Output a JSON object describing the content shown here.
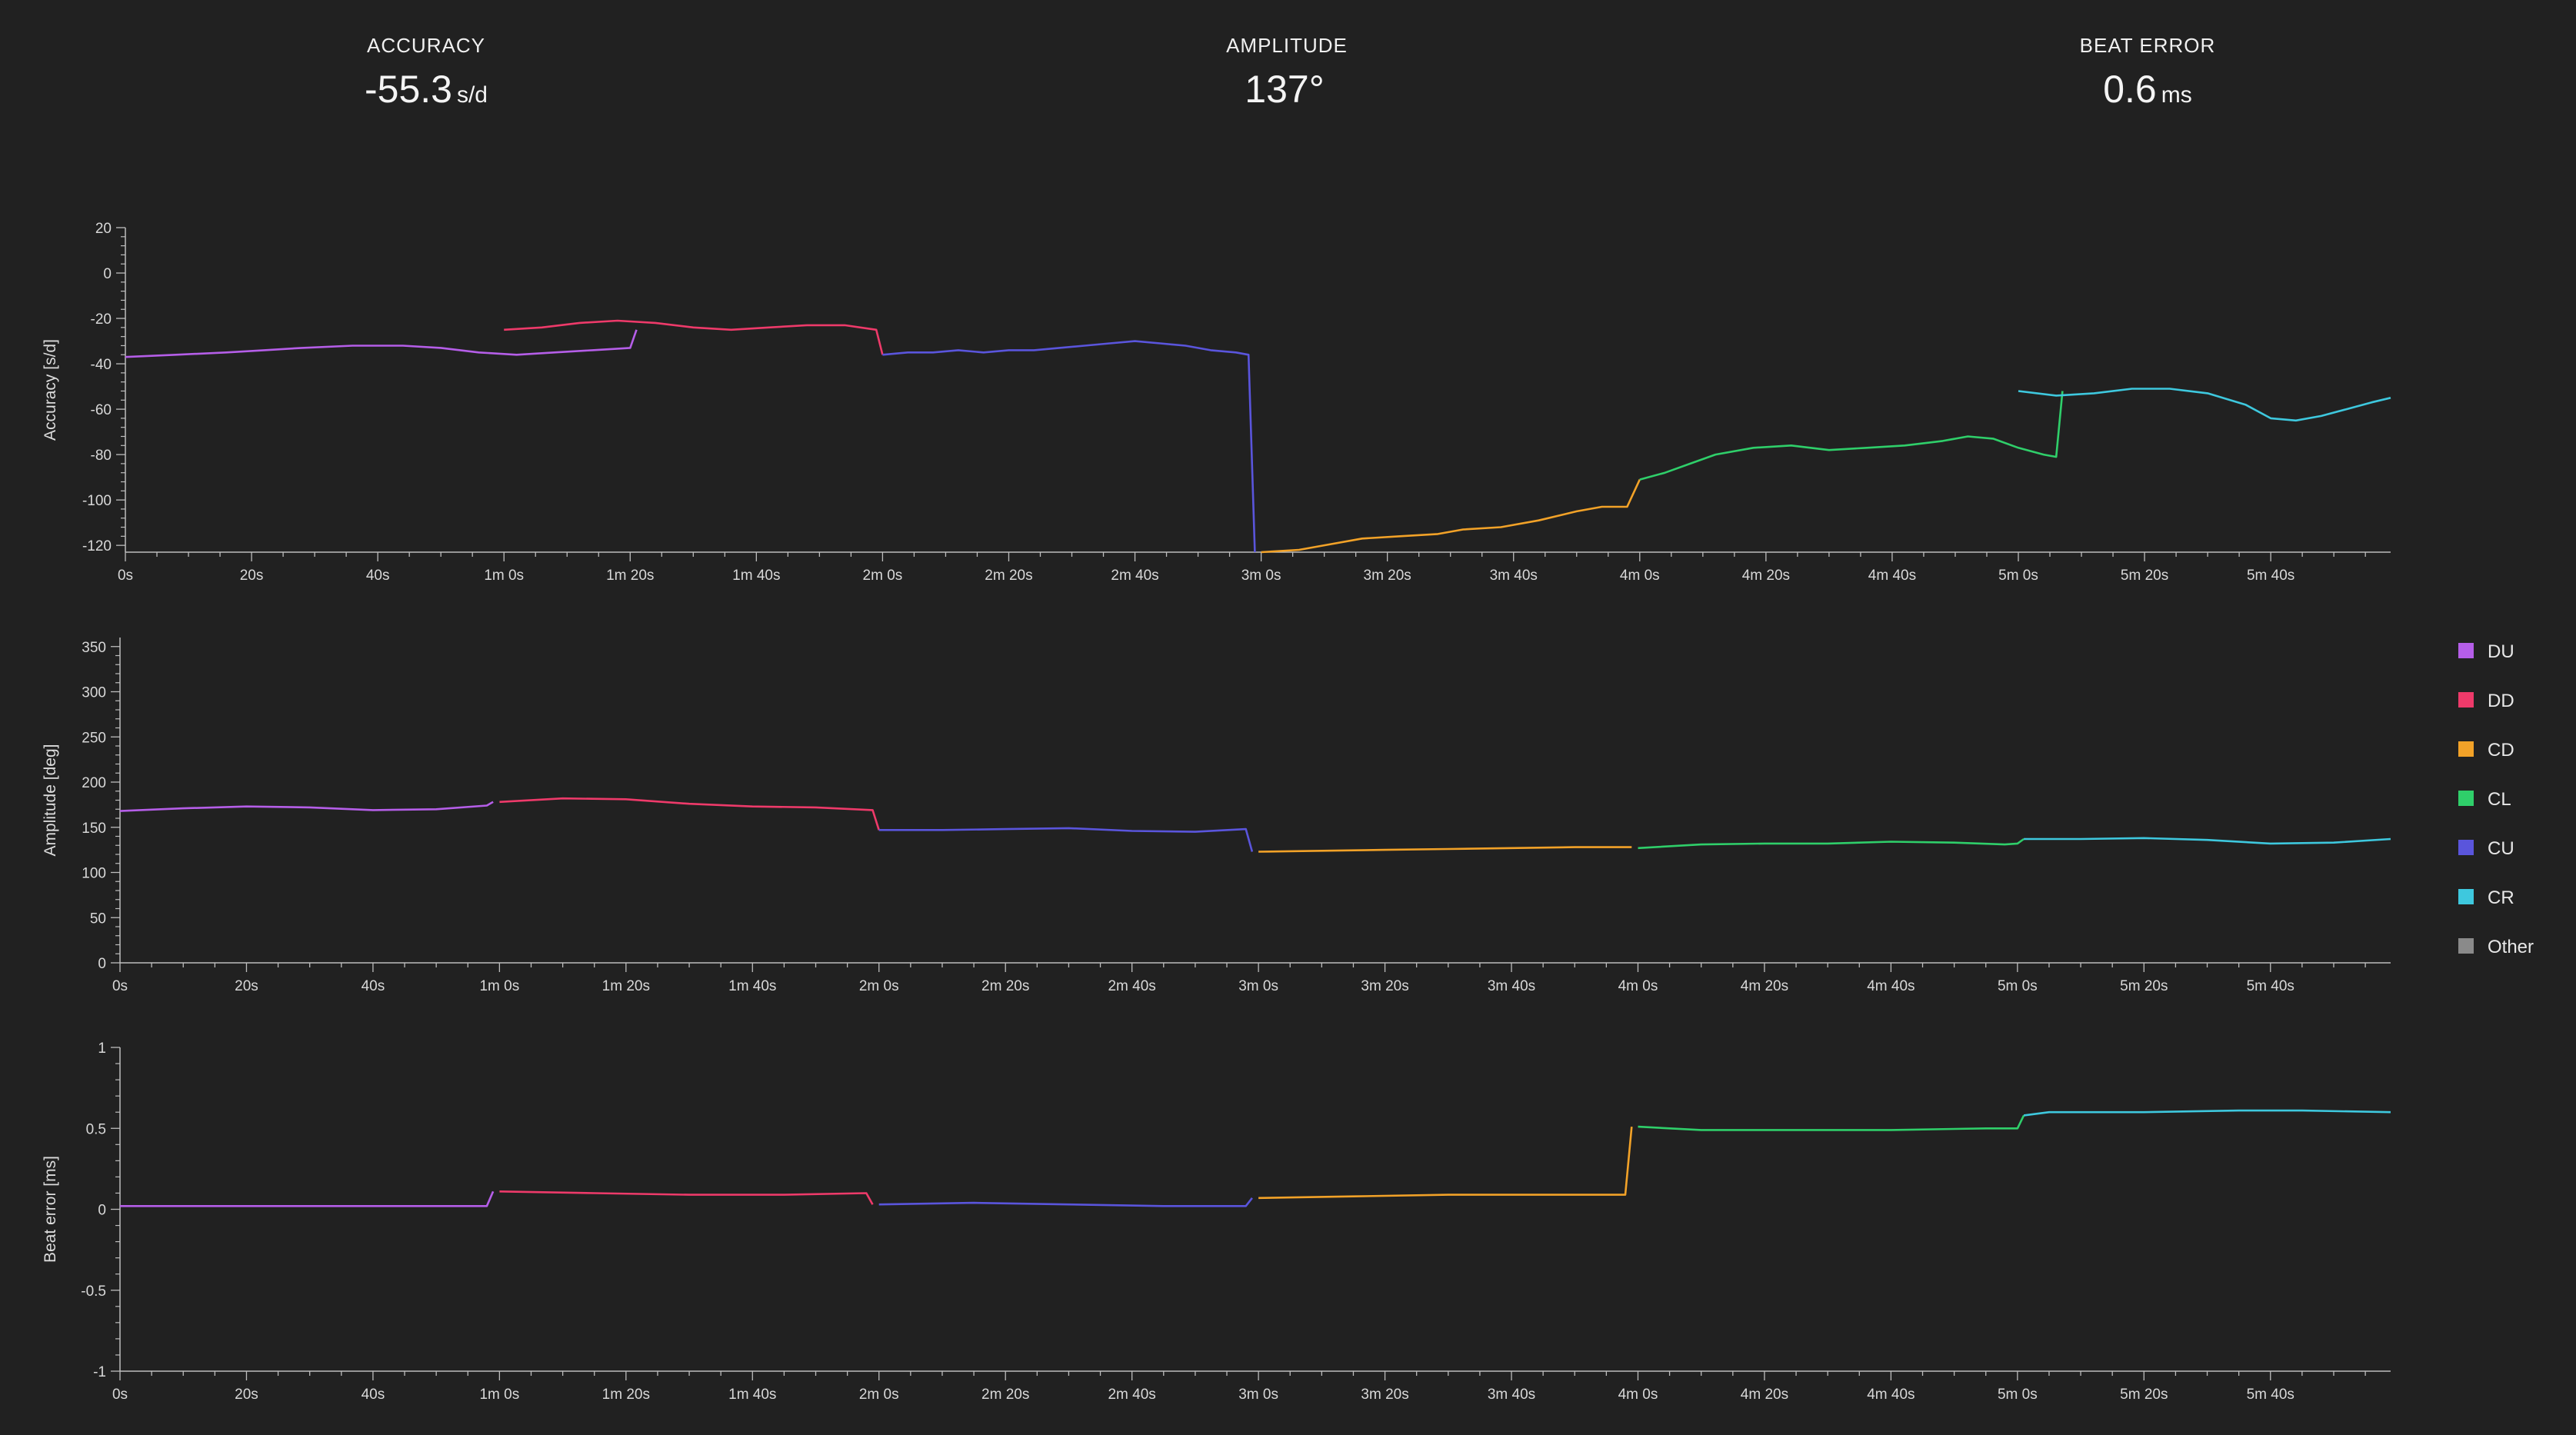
{
  "stats": [
    {
      "label": "ACCURACY",
      "value": "-55.3",
      "unit": "s/d"
    },
    {
      "label": "AMPLITUDE",
      "value": "137°",
      "unit": ""
    },
    {
      "label": "BEAT ERROR",
      "value": "0.6",
      "unit": "ms"
    }
  ],
  "legend": [
    {
      "name": "DU",
      "color": "#b55ee8"
    },
    {
      "name": "DD",
      "color": "#ee3a6a"
    },
    {
      "name": "CD",
      "color": "#f2a228"
    },
    {
      "name": "CL",
      "color": "#2fcf6a"
    },
    {
      "name": "CU",
      "color": "#5a55dc"
    },
    {
      "name": "CR",
      "color": "#3ec8de"
    },
    {
      "name": "Other",
      "color": "#8a8a8a"
    }
  ],
  "x_tick_labels": [
    "0s",
    "20s",
    "40s",
    "1m 0s",
    "1m 20s",
    "1m 40s",
    "2m 0s",
    "2m 20s",
    "2m 40s",
    "3m 0s",
    "3m 20s",
    "3m 40s",
    "4m 0s",
    "4m 20s",
    "4m 40s",
    "5m 0s",
    "5m 20s",
    "5m 40s"
  ],
  "chart_data": [
    {
      "type": "line",
      "ylabel": "Accuracy [s/d]",
      "xlim": [
        0,
        359
      ],
      "ylim": [
        -123,
        20
      ],
      "yticks": [
        20,
        0,
        -20,
        -40,
        -60,
        -80,
        -100,
        -120
      ],
      "series": [
        {
          "name": "DU",
          "points": [
            [
              0,
              -37
            ],
            [
              8,
              -36
            ],
            [
              16,
              -35
            ],
            [
              22,
              -34
            ],
            [
              28,
              -33
            ],
            [
              36,
              -32
            ],
            [
              44,
              -32
            ],
            [
              50,
              -33
            ],
            [
              56,
              -35
            ],
            [
              62,
              -36
            ],
            [
              68,
              -35
            ],
            [
              74,
              -34
            ],
            [
              80,
              -33
            ],
            [
              81,
              -25
            ]
          ]
        },
        {
          "name": "DD",
          "points": [
            [
              60,
              -25
            ],
            [
              66,
              -24
            ],
            [
              72,
              -22
            ],
            [
              78,
              -21
            ],
            [
              84,
              -22
            ],
            [
              90,
              -24
            ],
            [
              96,
              -25
            ],
            [
              102,
              -24
            ],
            [
              108,
              -23
            ],
            [
              114,
              -23
            ],
            [
              119,
              -25
            ],
            [
              120,
              -36
            ]
          ]
        },
        {
          "name": "CU",
          "points": [
            [
              120,
              -36
            ],
            [
              124,
              -35
            ],
            [
              128,
              -35
            ],
            [
              132,
              -34
            ],
            [
              136,
              -35
            ],
            [
              140,
              -34
            ],
            [
              144,
              -34
            ],
            [
              148,
              -33
            ],
            [
              152,
              -32
            ],
            [
              156,
              -31
            ],
            [
              160,
              -30
            ],
            [
              164,
              -31
            ],
            [
              168,
              -32
            ],
            [
              172,
              -34
            ],
            [
              176,
              -35
            ],
            [
              178,
              -36
            ],
            [
              179,
              -123
            ]
          ]
        },
        {
          "name": "CD",
          "points": [
            [
              180,
              -123
            ],
            [
              186,
              -122
            ],
            [
              190,
              -120
            ],
            [
              196,
              -117
            ],
            [
              202,
              -116
            ],
            [
              208,
              -115
            ],
            [
              212,
              -113
            ],
            [
              218,
              -112
            ],
            [
              224,
              -109
            ],
            [
              230,
              -105
            ],
            [
              234,
              -103
            ],
            [
              238,
              -103
            ],
            [
              240,
              -91
            ]
          ]
        },
        {
          "name": "CL",
          "points": [
            [
              240,
              -91
            ],
            [
              244,
              -88
            ],
            [
              248,
              -84
            ],
            [
              252,
              -80
            ],
            [
              258,
              -77
            ],
            [
              264,
              -76
            ],
            [
              270,
              -78
            ],
            [
              276,
              -77
            ],
            [
              282,
              -76
            ],
            [
              288,
              -74
            ],
            [
              292,
              -72
            ],
            [
              296,
              -73
            ],
            [
              300,
              -77
            ],
            [
              304,
              -80
            ],
            [
              306,
              -81
            ],
            [
              307,
              -52
            ]
          ]
        },
        {
          "name": "CR",
          "points": [
            [
              300,
              -52
            ],
            [
              306,
              -54
            ],
            [
              312,
              -53
            ],
            [
              318,
              -51
            ],
            [
              324,
              -51
            ],
            [
              330,
              -53
            ],
            [
              336,
              -58
            ],
            [
              340,
              -64
            ],
            [
              344,
              -65
            ],
            [
              348,
              -63
            ],
            [
              352,
              -60
            ],
            [
              356,
              -57
            ],
            [
              359,
              -55
            ]
          ]
        }
      ]
    },
    {
      "type": "line",
      "ylabel": "Amplitude [deg]",
      "xlim": [
        0,
        359
      ],
      "ylim": [
        0,
        360
      ],
      "yticks": [
        350,
        300,
        250,
        200,
        150,
        100,
        50,
        0
      ],
      "series": [
        {
          "name": "DU",
          "points": [
            [
              0,
              168
            ],
            [
              10,
              171
            ],
            [
              20,
              173
            ],
            [
              30,
              172
            ],
            [
              40,
              169
            ],
            [
              50,
              170
            ],
            [
              58,
              174
            ],
            [
              59,
              178
            ]
          ]
        },
        {
          "name": "DD",
          "points": [
            [
              60,
              178
            ],
            [
              70,
              182
            ],
            [
              80,
              181
            ],
            [
              90,
              176
            ],
            [
              100,
              173
            ],
            [
              110,
              172
            ],
            [
              119,
              169
            ],
            [
              120,
              147
            ]
          ]
        },
        {
          "name": "CU",
          "points": [
            [
              120,
              147
            ],
            [
              130,
              147
            ],
            [
              140,
              148
            ],
            [
              150,
              149
            ],
            [
              160,
              146
            ],
            [
              170,
              145
            ],
            [
              178,
              148
            ],
            [
              179,
              123
            ]
          ]
        },
        {
          "name": "CD",
          "points": [
            [
              180,
              123
            ],
            [
              190,
              124
            ],
            [
              200,
              125
            ],
            [
              210,
              126
            ],
            [
              220,
              127
            ],
            [
              230,
              128
            ],
            [
              239,
              128
            ]
          ]
        },
        {
          "name": "CL",
          "points": [
            [
              240,
              127
            ],
            [
              250,
              131
            ],
            [
              260,
              132
            ],
            [
              270,
              132
            ],
            [
              280,
              134
            ],
            [
              290,
              133
            ],
            [
              298,
              131
            ],
            [
              300,
              132
            ],
            [
              301,
              137
            ]
          ]
        },
        {
          "name": "CR",
          "points": [
            [
              301,
              137
            ],
            [
              310,
              137
            ],
            [
              320,
              138
            ],
            [
              330,
              136
            ],
            [
              340,
              132
            ],
            [
              350,
              133
            ],
            [
              359,
              137
            ]
          ]
        }
      ]
    },
    {
      "type": "line",
      "ylabel": "Beat error [ms]",
      "xlim": [
        0,
        359
      ],
      "ylim": [
        -1,
        1
      ],
      "yticks": [
        1,
        0.5,
        0,
        -0.5,
        -1
      ],
      "series": [
        {
          "name": "DU",
          "points": [
            [
              0,
              0.02
            ],
            [
              20,
              0.02
            ],
            [
              40,
              0.02
            ],
            [
              58,
              0.02
            ],
            [
              59,
              0.11
            ]
          ]
        },
        {
          "name": "DD",
          "points": [
            [
              60,
              0.11
            ],
            [
              75,
              0.1
            ],
            [
              90,
              0.09
            ],
            [
              105,
              0.09
            ],
            [
              118,
              0.1
            ],
            [
              119,
              0.03
            ]
          ]
        },
        {
          "name": "CU",
          "points": [
            [
              120,
              0.03
            ],
            [
              135,
              0.04
            ],
            [
              150,
              0.03
            ],
            [
              165,
              0.02
            ],
            [
              178,
              0.02
            ],
            [
              179,
              0.07
            ]
          ]
        },
        {
          "name": "CD",
          "points": [
            [
              180,
              0.07
            ],
            [
              195,
              0.08
            ],
            [
              210,
              0.09
            ],
            [
              225,
              0.09
            ],
            [
              238,
              0.09
            ],
            [
              239,
              0.51
            ]
          ]
        },
        {
          "name": "CL",
          "points": [
            [
              240,
              0.51
            ],
            [
              250,
              0.49
            ],
            [
              265,
              0.49
            ],
            [
              280,
              0.49
            ],
            [
              295,
              0.5
            ],
            [
              300,
              0.5
            ],
            [
              301,
              0.58
            ]
          ]
        },
        {
          "name": "CR",
          "points": [
            [
              301,
              0.58
            ],
            [
              305,
              0.6
            ],
            [
              320,
              0.6
            ],
            [
              335,
              0.61
            ],
            [
              345,
              0.61
            ],
            [
              359,
              0.6
            ]
          ]
        }
      ]
    }
  ]
}
